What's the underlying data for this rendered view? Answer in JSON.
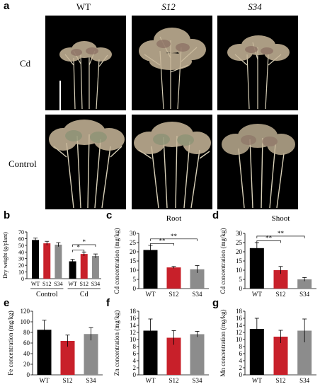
{
  "panel_labels": {
    "a": "a",
    "b": "b",
    "c": "c",
    "d": "d",
    "e": "e",
    "f": "f",
    "g": "g"
  },
  "photo_panel": {
    "columns": [
      "WT",
      "S12",
      "S34"
    ],
    "rows": [
      "Cd",
      "Control"
    ]
  },
  "chart_data": [
    {
      "id": "b",
      "type": "bar",
      "ylabel": "Dry weight (g/plant)",
      "yticks": [
        0,
        10,
        20,
        30,
        40,
        50,
        60,
        70
      ],
      "ylim": [
        0,
        70
      ],
      "categories": [
        "WT",
        "S12",
        "S34",
        "WT",
        "S12",
        "S34"
      ],
      "values": [
        58,
        53,
        51,
        26,
        37,
        34
      ],
      "errors": [
        3,
        3,
        3,
        3,
        3,
        3
      ],
      "colors": [
        "#000000",
        "#c8202a",
        "#8c8c8c",
        "#000000",
        "#c8202a",
        "#8c8c8c"
      ],
      "groups": [
        {
          "label": "Control",
          "from": 0,
          "to": 2
        },
        {
          "label": "Cd",
          "from": 3,
          "to": 5
        }
      ],
      "brackets": [
        {
          "from": 3,
          "to": 4,
          "label": "*",
          "y": 43
        },
        {
          "from": 3,
          "to": 5,
          "label": "*",
          "y": 51
        }
      ]
    },
    {
      "id": "c",
      "type": "bar",
      "title": "Root",
      "ylabel": "Cd concentration (mg/kg)",
      "yticks": [
        0,
        5,
        10,
        15,
        20,
        25,
        30
      ],
      "ylim": [
        0,
        30
      ],
      "categories": [
        "WT",
        "S12",
        "S34"
      ],
      "values": [
        21,
        11.5,
        10.5
      ],
      "errors": [
        2.5,
        0.5,
        2
      ],
      "colors": [
        "#000000",
        "#c8202a",
        "#8c8c8c"
      ],
      "brackets": [
        {
          "from": 0,
          "to": 1,
          "label": "**",
          "y": 24.5
        },
        {
          "from": 0,
          "to": 2,
          "label": "**",
          "y": 27
        }
      ]
    },
    {
      "id": "d",
      "type": "bar",
      "title": "Shoot",
      "ylabel": "Cd concentration (mg/kg)",
      "yticks": [
        0,
        5,
        10,
        15,
        20,
        25,
        30
      ],
      "ylim": [
        0,
        30
      ],
      "categories": [
        "WT",
        "S12",
        "S34"
      ],
      "values": [
        22,
        10,
        5
      ],
      "errors": [
        3,
        2,
        1
      ],
      "colors": [
        "#000000",
        "#c8202a",
        "#8c8c8c"
      ],
      "brackets": [
        {
          "from": 0,
          "to": 1,
          "label": "**",
          "y": 26
        },
        {
          "from": 0,
          "to": 2,
          "label": "**",
          "y": 28.5
        }
      ]
    },
    {
      "id": "e",
      "type": "bar",
      "ylabel": "Fe concentration (mg/kg)",
      "yticks": [
        0,
        20,
        40,
        60,
        80,
        100,
        120
      ],
      "ylim": [
        0,
        120
      ],
      "categories": [
        "WT",
        "S12",
        "S34"
      ],
      "values": [
        85,
        64,
        77
      ],
      "errors": [
        18,
        11,
        12
      ],
      "colors": [
        "#000000",
        "#c8202a",
        "#8c8c8c"
      ],
      "brackets": []
    },
    {
      "id": "f",
      "type": "bar",
      "ylabel": "Zn concentration (mg/kg)",
      "yticks": [
        0,
        2,
        4,
        6,
        8,
        10,
        12,
        14,
        16,
        18
      ],
      "ylim": [
        0,
        18
      ],
      "categories": [
        "WT",
        "S12",
        "S34"
      ],
      "values": [
        12.5,
        10.5,
        11.5
      ],
      "errors": [
        3.3,
        2,
        0.8
      ],
      "colors": [
        "#000000",
        "#c8202a",
        "#8c8c8c"
      ],
      "brackets": []
    },
    {
      "id": "g",
      "type": "bar",
      "ylabel": "Mn concentration (mg/kg)",
      "yticks": [
        0,
        2,
        4,
        6,
        8,
        10,
        12,
        14,
        16,
        18
      ],
      "ylim": [
        0,
        18
      ],
      "categories": [
        "WT",
        "S12",
        "S34"
      ],
      "values": [
        13,
        10.8,
        12.5
      ],
      "errors": [
        3,
        1.8,
        3.3
      ],
      "colors": [
        "#000000",
        "#c8202a",
        "#8c8c8c"
      ],
      "brackets": []
    }
  ]
}
